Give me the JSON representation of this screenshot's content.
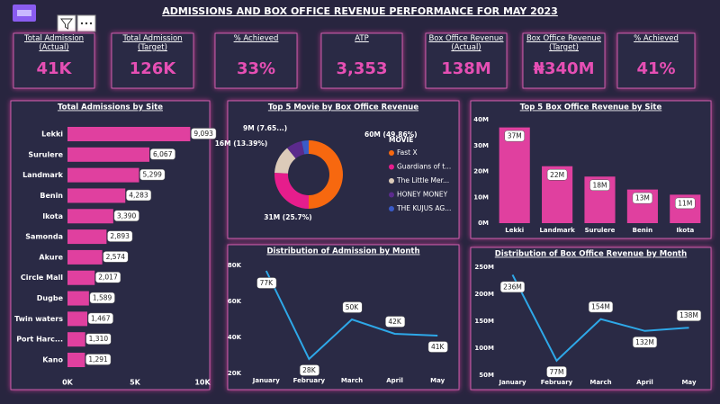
{
  "title": "ADMISSIONS AND BOX OFFICE REVENUE PERFORMANCE FOR MAY 2023",
  "kpis": [
    {
      "label": "Total Admission (Actual)",
      "value": "41K"
    },
    {
      "label": "Total Admission (Target)",
      "value": "126K"
    },
    {
      "label": "% Achieved",
      "value": "33%"
    },
    {
      "label": "ATP",
      "value": "3,353"
    },
    {
      "label": "Box Office Revenue (Actual)",
      "value": "138M"
    },
    {
      "label": "Box Office Revenue (Target)",
      "value": "₦340M"
    },
    {
      "label": "% Achieved",
      "value": "41%"
    }
  ],
  "chart_data": [
    {
      "type": "bar",
      "orientation": "horizontal",
      "title": "Total Admissions by Site",
      "categories": [
        "Lekki",
        "Surulere",
        "Landmark",
        "Benin",
        "Ikota",
        "Samonda",
        "Akure",
        "Circle Mall",
        "Dugbe",
        "Twin waters",
        "Port Harc...",
        "Kano"
      ],
      "values": [
        9093,
        6067,
        5299,
        4283,
        3390,
        2893,
        2574,
        2017,
        1589,
        1467,
        1310,
        1291
      ],
      "value_labels": [
        "9,093",
        "6,067",
        "5,299",
        "4,283",
        "3,390",
        "2,893",
        "2,574",
        "2,017",
        "1,589",
        "1,467",
        "1,310",
        "1,291"
      ],
      "color": "#e0409f",
      "xlim": [
        0,
        10000
      ],
      "xticks": [
        {
          "value": 0,
          "label": "0K"
        },
        {
          "value": 5000,
          "label": "5K"
        },
        {
          "value": 10000,
          "label": "10K"
        }
      ],
      "grid": false
    },
    {
      "type": "pie",
      "donut": true,
      "title": "Top 5 Movie by Box Office Revenue",
      "legend_title": "MOVIE",
      "categories": [
        "Fast X",
        "Guardians of t...",
        "The Little Mer...",
        "HONEY MONEY",
        "THE KUJUS AG..."
      ],
      "values": [
        60,
        31,
        16,
        9,
        4
      ],
      "value_labels": [
        "60M (49.86%)",
        "31M (25.7%)",
        "16M (13.39%)",
        "9M (7.65...)",
        null
      ],
      "colors": [
        "#f7680f",
        "#e61d8c",
        "#dccbb9",
        "#5b2a8c",
        "#3a5bc7"
      ]
    },
    {
      "type": "bar",
      "orientation": "vertical",
      "title": "Top 5 Box Office Revenue by Site",
      "categories": [
        "Lekki",
        "Landmark",
        "Surulere",
        "Benin",
        "Ikota"
      ],
      "values": [
        37,
        22,
        18,
        13,
        11
      ],
      "value_labels": [
        "37M",
        "22M",
        "18M",
        "13M",
        "11M"
      ],
      "color": "#e0409f",
      "ylim": [
        0,
        40
      ],
      "yticks": [
        {
          "value": 0,
          "label": "0M"
        },
        {
          "value": 10,
          "label": "10M"
        },
        {
          "value": 20,
          "label": "20M"
        },
        {
          "value": 30,
          "label": "30M"
        },
        {
          "value": 40,
          "label": "40M"
        }
      ],
      "grid": false
    },
    {
      "type": "line",
      "title": "Distribution of Admission by Month",
      "categories": [
        "January",
        "February",
        "March",
        "April",
        "May"
      ],
      "values": [
        77,
        28,
        50,
        42,
        41
      ],
      "value_labels": [
        "77K",
        "28K",
        "50K",
        "42K",
        "41K"
      ],
      "color": "#2ea8e8",
      "ylim": [
        20,
        80
      ],
      "yticks": [
        {
          "value": 20,
          "label": "20K"
        },
        {
          "value": 40,
          "label": "40K"
        },
        {
          "value": 60,
          "label": "60K"
        },
        {
          "value": 80,
          "label": "80K"
        }
      ],
      "grid": false
    },
    {
      "type": "line",
      "title": "Distribution of Box Office Revenue by Month",
      "categories": [
        "January",
        "February",
        "March",
        "April",
        "May"
      ],
      "values": [
        236,
        77,
        154,
        132,
        138
      ],
      "value_labels": [
        "236M",
        "77M",
        "154M",
        "132M",
        "138M"
      ],
      "color": "#2ea8e8",
      "ylim": [
        50,
        250
      ],
      "yticks": [
        {
          "value": 50,
          "label": "50M"
        },
        {
          "value": 100,
          "label": "100M"
        },
        {
          "value": 150,
          "label": "150M"
        },
        {
          "value": 200,
          "label": "200M"
        },
        {
          "value": 250,
          "label": "250M"
        }
      ],
      "grid": false
    }
  ]
}
